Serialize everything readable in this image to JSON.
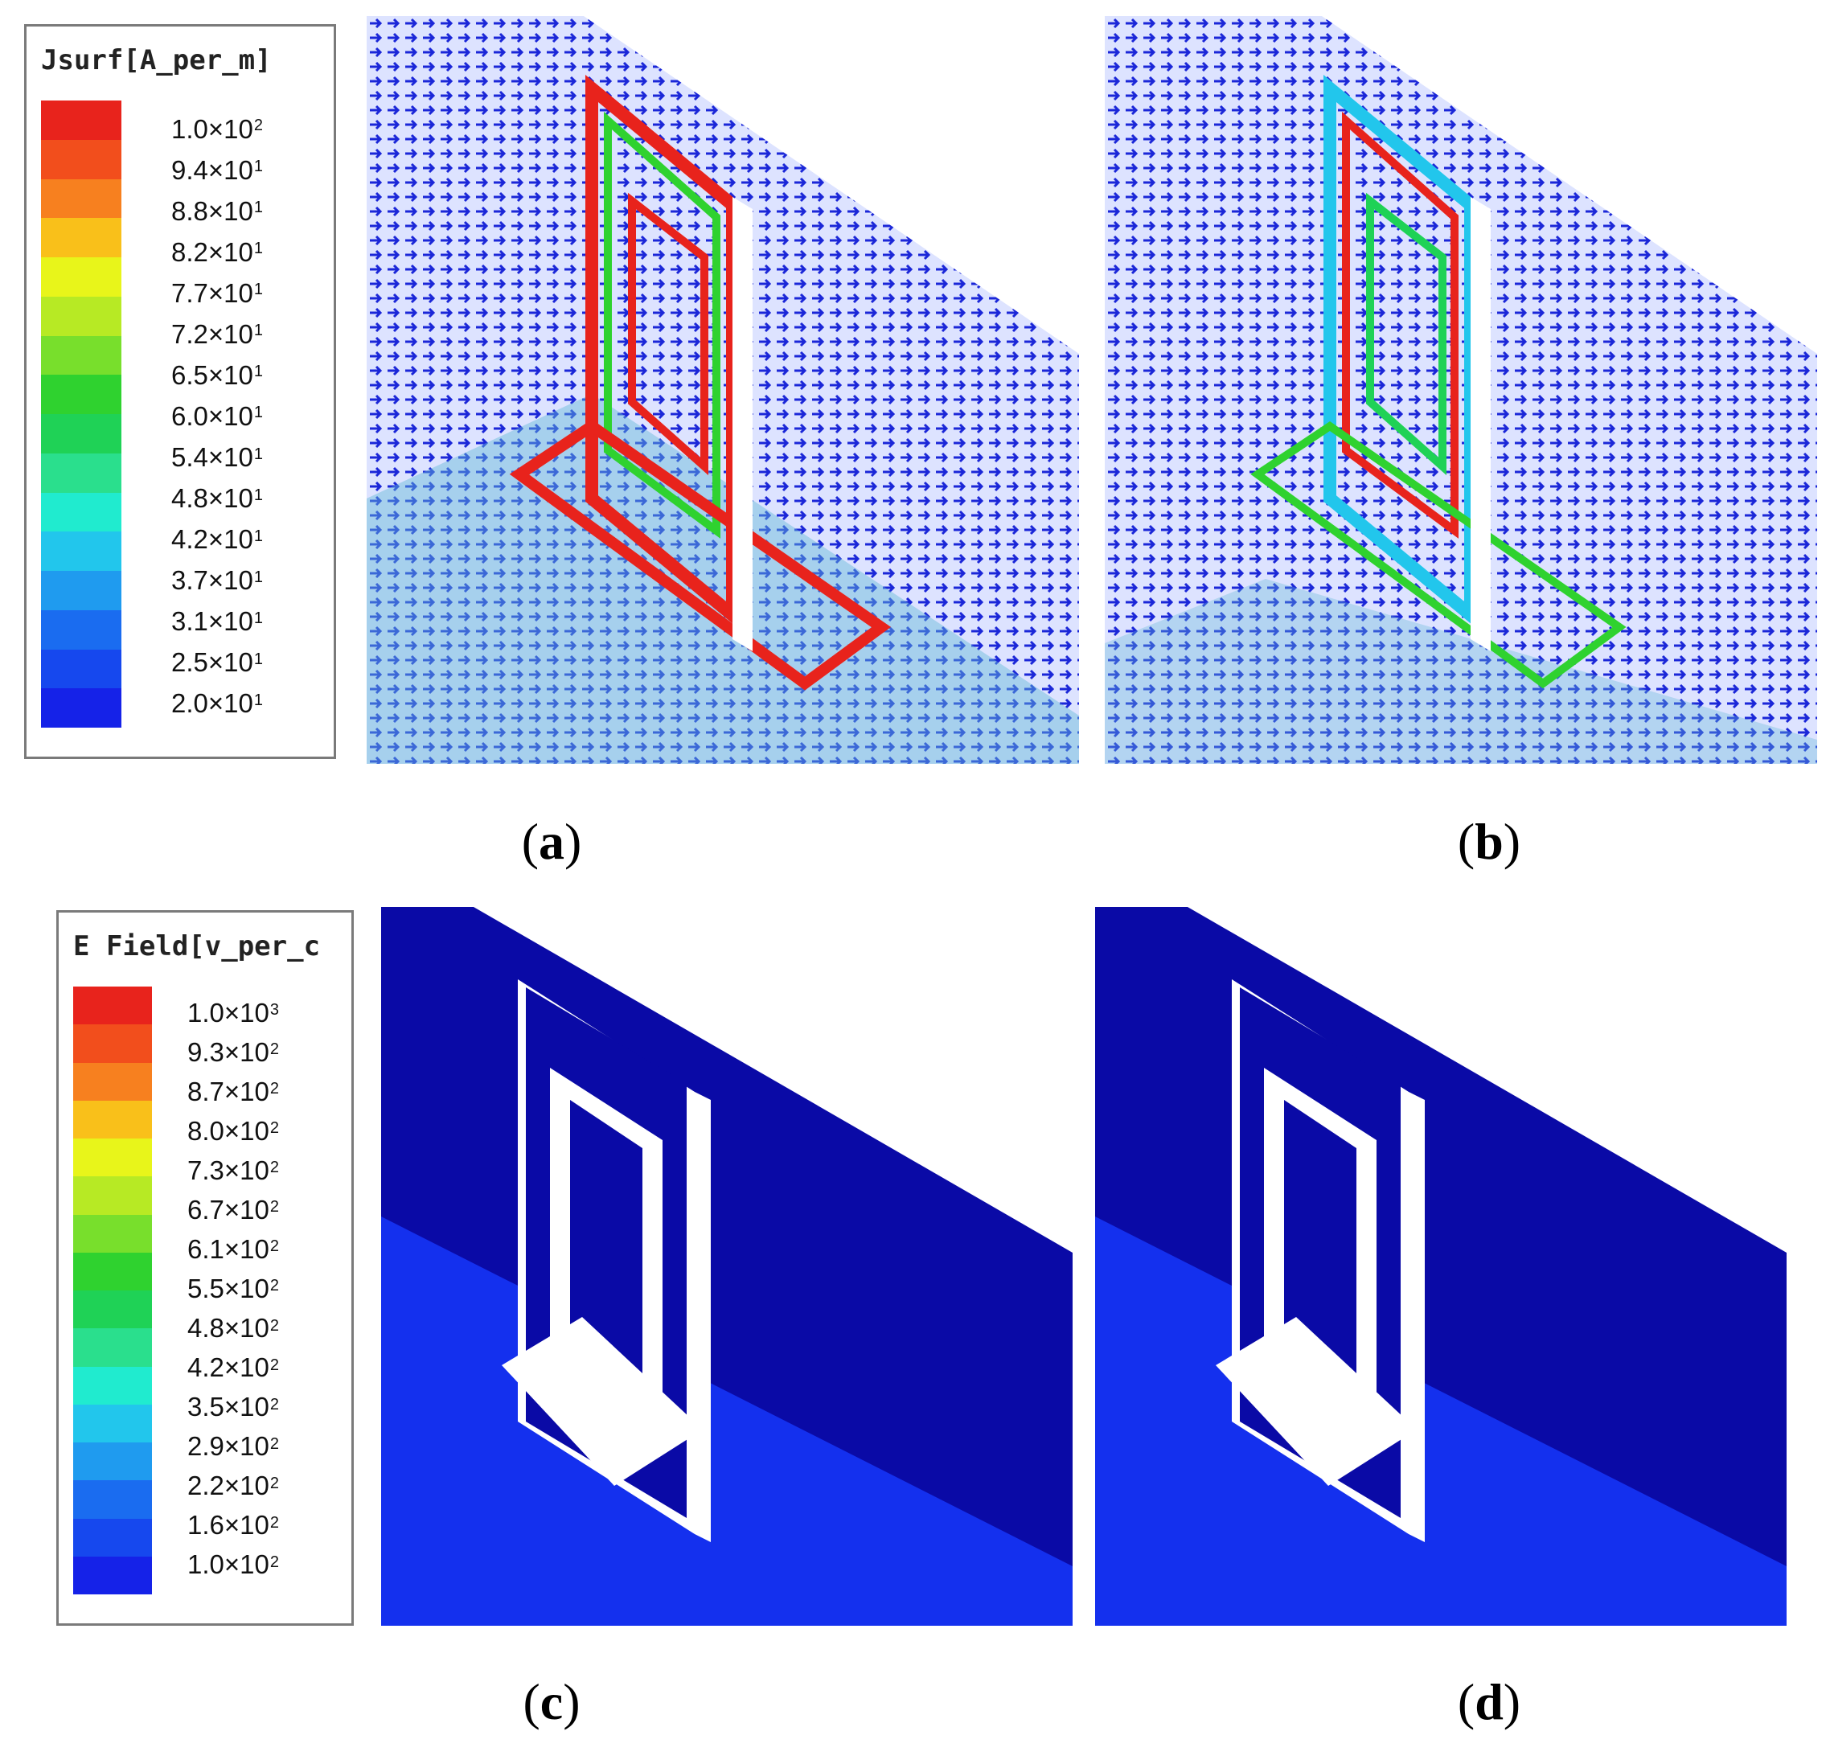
{
  "legend_top": {
    "title": "Jsurf[A_per_m]",
    "colors": [
      "#e8231c",
      "#f24e1c",
      "#f7801f",
      "#f9c01a",
      "#e8f51a",
      "#b7ea24",
      "#78df2c",
      "#2fd22f",
      "#1fd256",
      "#2adf8d",
      "#20ebcf",
      "#22c6ec",
      "#1f9bef",
      "#1a6cf0",
      "#1648ee",
      "#1522e8"
    ],
    "ticks": [
      {
        "m": "1.0",
        "e": "2"
      },
      {
        "m": "9.4",
        "e": "1"
      },
      {
        "m": "8.8",
        "e": "1"
      },
      {
        "m": "8.2",
        "e": "1"
      },
      {
        "m": "7.7",
        "e": "1"
      },
      {
        "m": "7.2",
        "e": "1"
      },
      {
        "m": "6.5",
        "e": "1"
      },
      {
        "m": "6.0",
        "e": "1"
      },
      {
        "m": "5.4",
        "e": "1"
      },
      {
        "m": "4.8",
        "e": "1"
      },
      {
        "m": "4.2",
        "e": "1"
      },
      {
        "m": "3.7",
        "e": "1"
      },
      {
        "m": "3.1",
        "e": "1"
      },
      {
        "m": "2.5",
        "e": "1"
      },
      {
        "m": "2.0",
        "e": "1"
      }
    ]
  },
  "legend_bottom": {
    "title": "E Field[v_per_c",
    "colors": [
      "#e8231c",
      "#f24e1c",
      "#f7801f",
      "#f9c01a",
      "#e8f51a",
      "#b7ea24",
      "#78df2c",
      "#2fd22f",
      "#1fd256",
      "#2adf8d",
      "#20ebcf",
      "#22c6ec",
      "#1f9bef",
      "#1a6cf0",
      "#1648ee",
      "#1522e8"
    ],
    "ticks": [
      {
        "m": "1.0",
        "e": "3"
      },
      {
        "m": "9.3",
        "e": "2"
      },
      {
        "m": "8.7",
        "e": "2"
      },
      {
        "m": "8.0",
        "e": "2"
      },
      {
        "m": "7.3",
        "e": "2"
      },
      {
        "m": "6.7",
        "e": "2"
      },
      {
        "m": "6.1",
        "e": "2"
      },
      {
        "m": "5.5",
        "e": "2"
      },
      {
        "m": "4.8",
        "e": "2"
      },
      {
        "m": "4.2",
        "e": "2"
      },
      {
        "m": "3.5",
        "e": "2"
      },
      {
        "m": "2.9",
        "e": "2"
      },
      {
        "m": "2.2",
        "e": "2"
      },
      {
        "m": "1.6",
        "e": "2"
      },
      {
        "m": "1.0",
        "e": "2"
      }
    ]
  },
  "captions": {
    "a": "a",
    "b": "b",
    "c": "c",
    "d": "d"
  },
  "times_sign": "×"
}
